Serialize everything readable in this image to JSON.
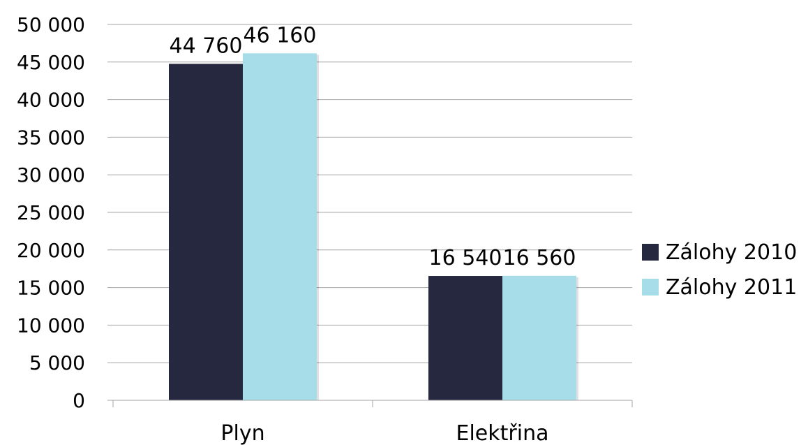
{
  "chart_data": {
    "type": "bar",
    "categories": [
      "Plyn",
      "Elektřina"
    ],
    "series": [
      {
        "name": "Zálohy 2010",
        "values": [
          44760,
          16540
        ],
        "color": "#262840",
        "value_labels": [
          "44 760",
          "16 540"
        ]
      },
      {
        "name": "Zálohy 2011",
        "values": [
          46160,
          16560
        ],
        "color": "#a7dde9",
        "value_labels": [
          "46 160",
          "16 560"
        ]
      }
    ],
    "title": "",
    "xlabel": "",
    "ylabel": "",
    "ylim": [
      0,
      50000
    ],
    "yticks": [
      0,
      5000,
      10000,
      15000,
      20000,
      25000,
      30000,
      35000,
      40000,
      45000,
      50000
    ],
    "ytick_labels": [
      "0",
      "5 000",
      "10 000",
      "15 000",
      "20 000",
      "25 000",
      "30 000",
      "35 000",
      "40 000",
      "45 000",
      "50 000"
    ],
    "grid": true,
    "legend_position": "right",
    "grid_color": "#a6a6a6"
  }
}
